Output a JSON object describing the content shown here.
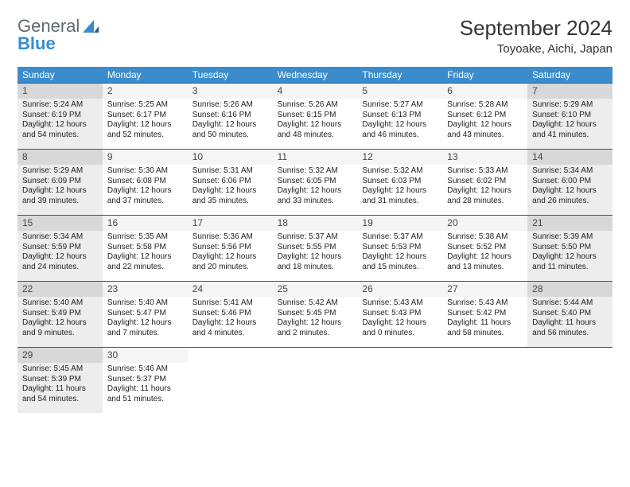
{
  "brand": {
    "word1": "General",
    "word2": "Blue"
  },
  "title": "September 2024",
  "location": "Toyoake, Aichi, Japan",
  "colors": {
    "accent": "#3a8ccc",
    "rule": "#2c5c87",
    "shade": "#ededed",
    "shade_head": "#d8d8d8",
    "plain_head": "#f5f5f5"
  },
  "day_names": [
    "Sunday",
    "Monday",
    "Tuesday",
    "Wednesday",
    "Thursday",
    "Friday",
    "Saturday"
  ],
  "layout": {
    "cols": 7,
    "rows": 5
  },
  "days": [
    {
      "n": "1",
      "shaded": true,
      "sunrise": "5:24 AM",
      "sunset": "6:19 PM",
      "dl_h": 12,
      "dl_m": 54
    },
    {
      "n": "2",
      "shaded": false,
      "sunrise": "5:25 AM",
      "sunset": "6:17 PM",
      "dl_h": 12,
      "dl_m": 52
    },
    {
      "n": "3",
      "shaded": false,
      "sunrise": "5:26 AM",
      "sunset": "6:16 PM",
      "dl_h": 12,
      "dl_m": 50
    },
    {
      "n": "4",
      "shaded": false,
      "sunrise": "5:26 AM",
      "sunset": "6:15 PM",
      "dl_h": 12,
      "dl_m": 48
    },
    {
      "n": "5",
      "shaded": false,
      "sunrise": "5:27 AM",
      "sunset": "6:13 PM",
      "dl_h": 12,
      "dl_m": 46
    },
    {
      "n": "6",
      "shaded": false,
      "sunrise": "5:28 AM",
      "sunset": "6:12 PM",
      "dl_h": 12,
      "dl_m": 43
    },
    {
      "n": "7",
      "shaded": true,
      "sunrise": "5:29 AM",
      "sunset": "6:10 PM",
      "dl_h": 12,
      "dl_m": 41
    },
    {
      "n": "8",
      "shaded": true,
      "sunrise": "5:29 AM",
      "sunset": "6:09 PM",
      "dl_h": 12,
      "dl_m": 39
    },
    {
      "n": "9",
      "shaded": false,
      "sunrise": "5:30 AM",
      "sunset": "6:08 PM",
      "dl_h": 12,
      "dl_m": 37
    },
    {
      "n": "10",
      "shaded": false,
      "sunrise": "5:31 AM",
      "sunset": "6:06 PM",
      "dl_h": 12,
      "dl_m": 35
    },
    {
      "n": "11",
      "shaded": false,
      "sunrise": "5:32 AM",
      "sunset": "6:05 PM",
      "dl_h": 12,
      "dl_m": 33
    },
    {
      "n": "12",
      "shaded": false,
      "sunrise": "5:32 AM",
      "sunset": "6:03 PM",
      "dl_h": 12,
      "dl_m": 31
    },
    {
      "n": "13",
      "shaded": false,
      "sunrise": "5:33 AM",
      "sunset": "6:02 PM",
      "dl_h": 12,
      "dl_m": 28
    },
    {
      "n": "14",
      "shaded": true,
      "sunrise": "5:34 AM",
      "sunset": "6:00 PM",
      "dl_h": 12,
      "dl_m": 26
    },
    {
      "n": "15",
      "shaded": true,
      "sunrise": "5:34 AM",
      "sunset": "5:59 PM",
      "dl_h": 12,
      "dl_m": 24
    },
    {
      "n": "16",
      "shaded": false,
      "sunrise": "5:35 AM",
      "sunset": "5:58 PM",
      "dl_h": 12,
      "dl_m": 22
    },
    {
      "n": "17",
      "shaded": false,
      "sunrise": "5:36 AM",
      "sunset": "5:56 PM",
      "dl_h": 12,
      "dl_m": 20
    },
    {
      "n": "18",
      "shaded": false,
      "sunrise": "5:37 AM",
      "sunset": "5:55 PM",
      "dl_h": 12,
      "dl_m": 18
    },
    {
      "n": "19",
      "shaded": false,
      "sunrise": "5:37 AM",
      "sunset": "5:53 PM",
      "dl_h": 12,
      "dl_m": 15
    },
    {
      "n": "20",
      "shaded": false,
      "sunrise": "5:38 AM",
      "sunset": "5:52 PM",
      "dl_h": 12,
      "dl_m": 13
    },
    {
      "n": "21",
      "shaded": true,
      "sunrise": "5:39 AM",
      "sunset": "5:50 PM",
      "dl_h": 12,
      "dl_m": 11
    },
    {
      "n": "22",
      "shaded": true,
      "sunrise": "5:40 AM",
      "sunset": "5:49 PM",
      "dl_h": 12,
      "dl_m": 9
    },
    {
      "n": "23",
      "shaded": false,
      "sunrise": "5:40 AM",
      "sunset": "5:47 PM",
      "dl_h": 12,
      "dl_m": 7
    },
    {
      "n": "24",
      "shaded": false,
      "sunrise": "5:41 AM",
      "sunset": "5:46 PM",
      "dl_h": 12,
      "dl_m": 4
    },
    {
      "n": "25",
      "shaded": false,
      "sunrise": "5:42 AM",
      "sunset": "5:45 PM",
      "dl_h": 12,
      "dl_m": 2
    },
    {
      "n": "26",
      "shaded": false,
      "sunrise": "5:43 AM",
      "sunset": "5:43 PM",
      "dl_h": 12,
      "dl_m": 0
    },
    {
      "n": "27",
      "shaded": false,
      "sunrise": "5:43 AM",
      "sunset": "5:42 PM",
      "dl_h": 11,
      "dl_m": 58
    },
    {
      "n": "28",
      "shaded": true,
      "sunrise": "5:44 AM",
      "sunset": "5:40 PM",
      "dl_h": 11,
      "dl_m": 56
    },
    {
      "n": "29",
      "shaded": true,
      "sunrise": "5:45 AM",
      "sunset": "5:39 PM",
      "dl_h": 11,
      "dl_m": 54
    },
    {
      "n": "30",
      "shaded": false,
      "sunrise": "5:46 AM",
      "sunset": "5:37 PM",
      "dl_h": 11,
      "dl_m": 51
    }
  ]
}
